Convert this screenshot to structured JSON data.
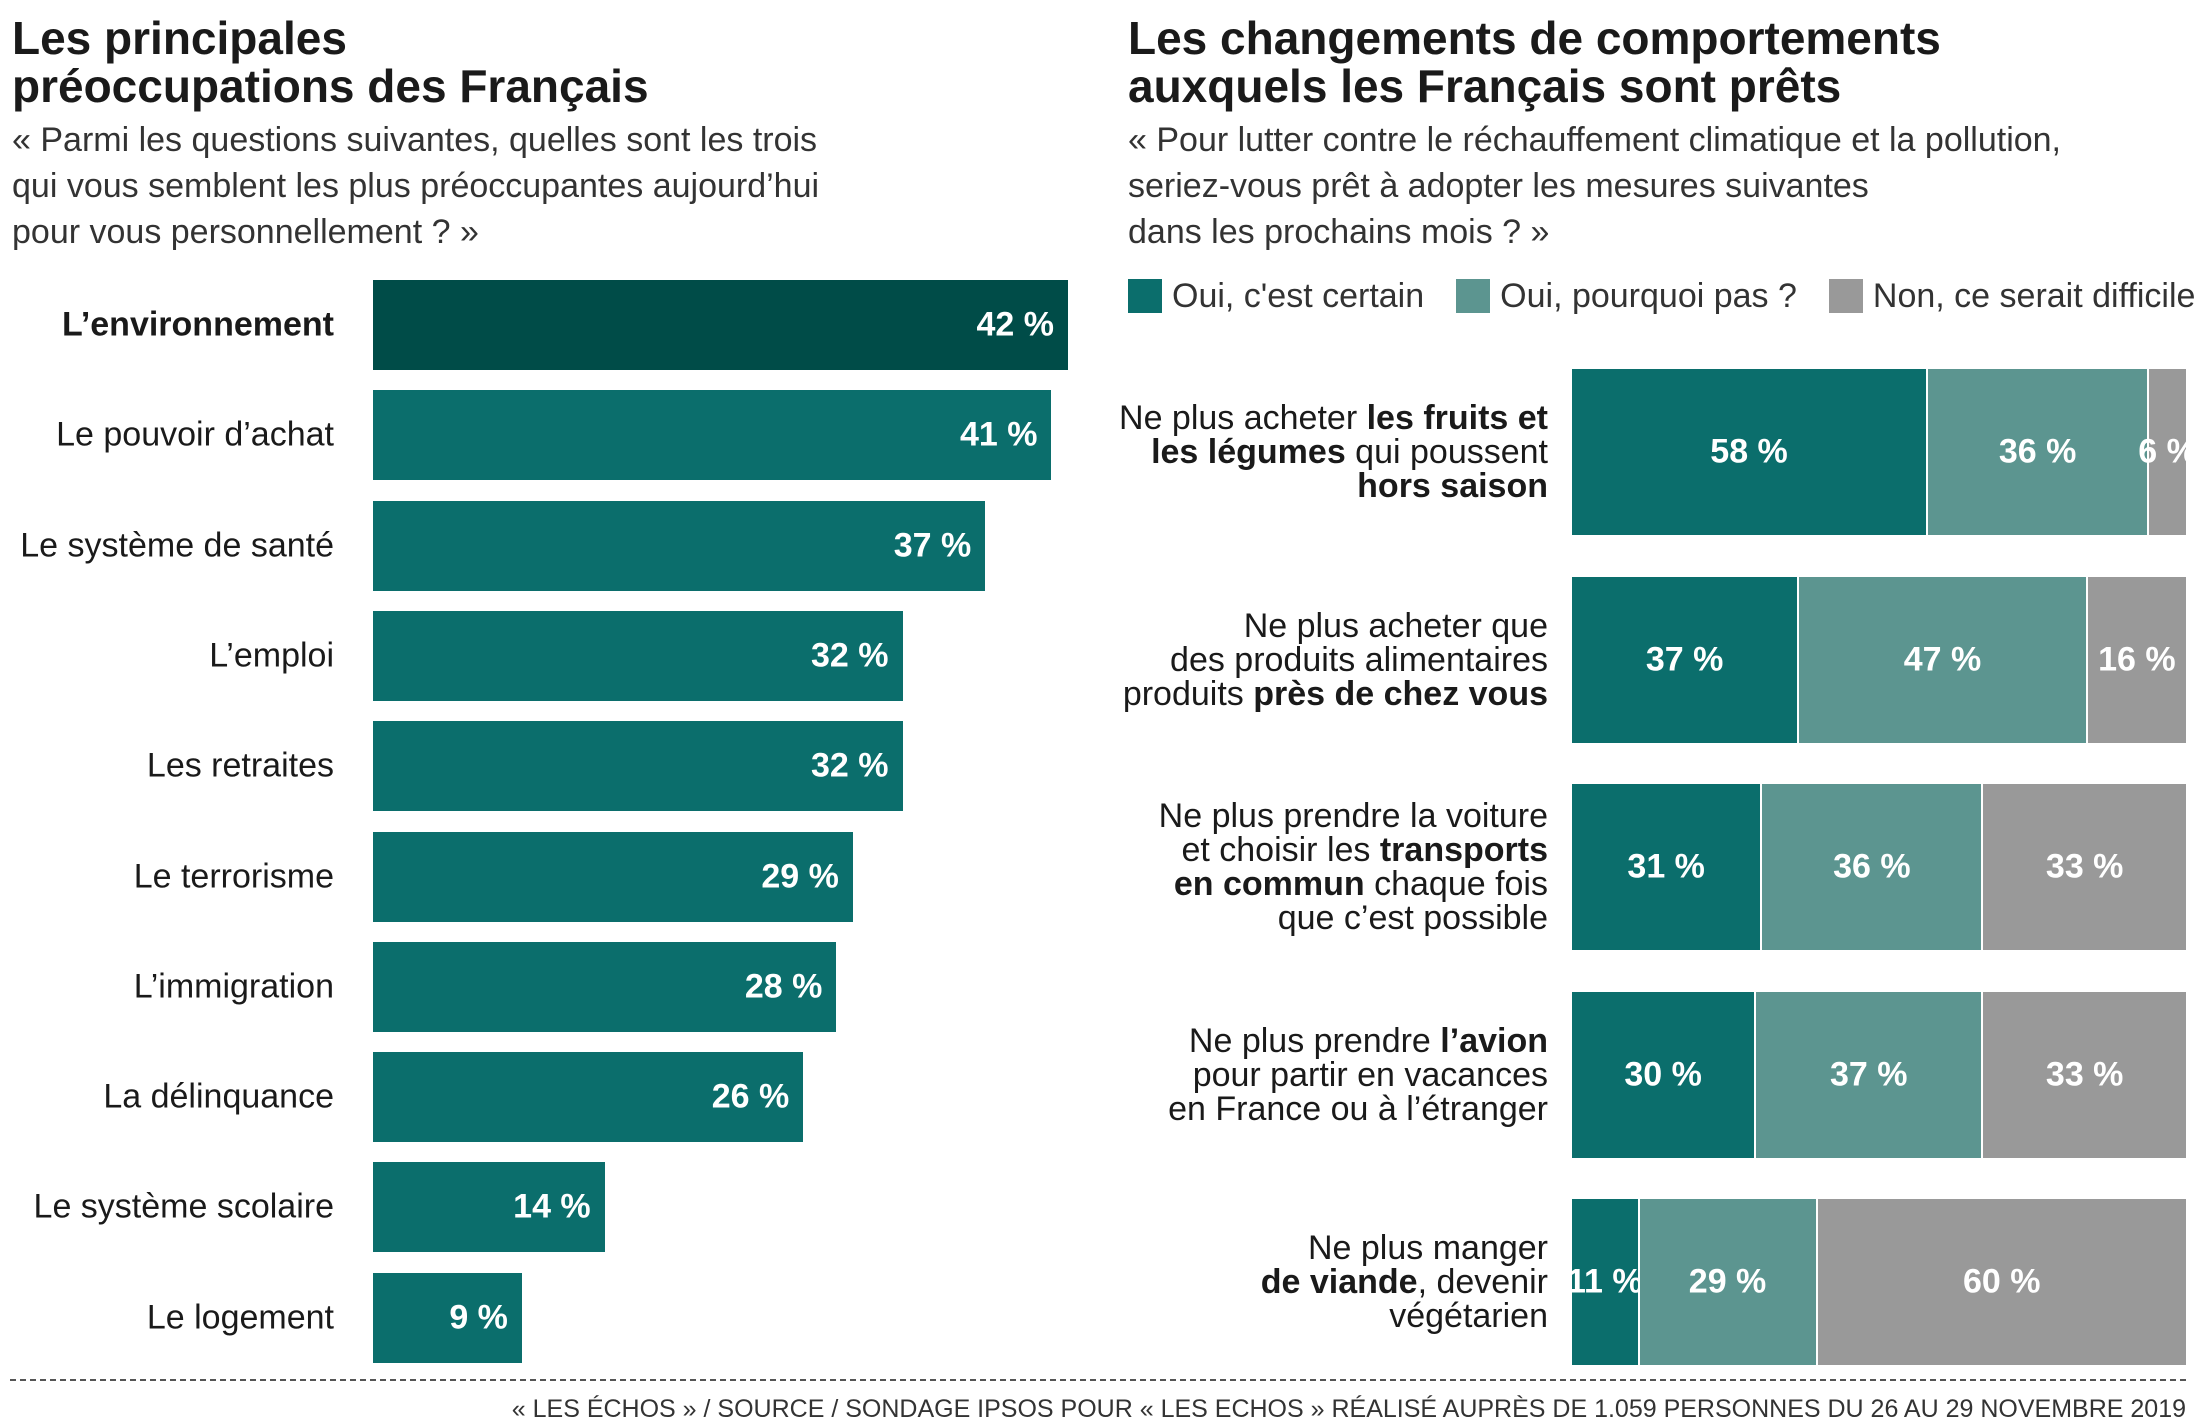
{
  "chart_data": [
    {
      "type": "bar",
      "orientation": "horizontal",
      "title": "Les principales préoccupations des Français",
      "title_lines": [
        "Les principales",
        "préoccupations des Français"
      ],
      "subtitle": "« Parmi les questions suivantes, quelles sont les trois qui vous semblent les plus préoccupantes aujourd’hui pour vous personnellement ? »",
      "subtitle_lines": [
        "« Parmi les questions suivantes, quelles sont les trois",
        "qui vous semblent les plus préoccupantes aujourd’hui",
        "pour vous personnellement ? »"
      ],
      "categories": [
        "L’environnement",
        "Le pouvoir d’achat",
        "Le système de santé",
        "L’emploi",
        "Les retraites",
        "Le terrorisme",
        "L’immigration",
        "La délinquance",
        "Le système scolaire",
        "Le logement"
      ],
      "values": [
        42,
        41,
        37,
        32,
        32,
        29,
        28,
        26,
        14,
        9
      ],
      "value_labels": [
        "42 %",
        "41 %",
        "37 %",
        "32 %",
        "32 %",
        "29 %",
        "28 %",
        "26 %",
        "14 %",
        "9 %"
      ],
      "unit": "%",
      "xlim": [
        0,
        42
      ],
      "colors": {
        "highlight": "#004c48",
        "bar": "#0b6e6c"
      }
    },
    {
      "type": "bar",
      "orientation": "horizontal",
      "stacked": true,
      "title": "Les changements de comportements auxquels les Français sont prêts",
      "title_lines": [
        "Les changements de comportements",
        "auxquels les Français sont prêts"
      ],
      "subtitle": "« Pour lutter contre le réchauffement climatique et la pollution, seriez-vous prêt à adopter les mesures suivantes dans les prochains mois ? »",
      "subtitle_lines": [
        "« Pour lutter contre le réchauffement climatique et la pollution,",
        "seriez-vous prêt à adopter les mesures suivantes",
        "dans les prochains mois ? »"
      ],
      "legend_placement": "top",
      "series": [
        {
          "name": "Oui, c'est certain",
          "color": "#0b6e6c",
          "values": [
            58,
            37,
            31,
            30,
            11
          ],
          "value_labels": [
            "58 %",
            "37 %",
            "31 %",
            "30 %",
            "11 %"
          ]
        },
        {
          "name": "Oui, pourquoi pas ?",
          "color": "#5c9590",
          "values": [
            36,
            47,
            36,
            37,
            29
          ],
          "value_labels": [
            "36 %",
            "47 %",
            "36 %",
            "37 %",
            "29 %"
          ]
        },
        {
          "name": "Non, ce serait difficile",
          "color": "#999999",
          "values": [
            6,
            16,
            33,
            33,
            60
          ],
          "value_labels": [
            "6 %",
            "16 %",
            "33 %",
            "33 %",
            "60 %"
          ]
        }
      ],
      "categories": [
        {
          "lines": [
            [
              {
                "t": "Ne plus acheter "
              },
              {
                "t": "les fruits et",
                "b": true
              }
            ],
            [
              {
                "t": "les légumes",
                "b": true
              },
              {
                "t": " qui poussent"
              }
            ],
            [
              {
                "t": "hors saison",
                "b": true
              }
            ]
          ]
        },
        {
          "lines": [
            [
              {
                "t": "Ne plus acheter que"
              }
            ],
            [
              {
                "t": "des produits alimentaires"
              }
            ],
            [
              {
                "t": "produits "
              },
              {
                "t": "près de chez vous",
                "b": true
              }
            ]
          ]
        },
        {
          "lines": [
            [
              {
                "t": "Ne plus prendre la voiture"
              }
            ],
            [
              {
                "t": "et choisir les "
              },
              {
                "t": "transports",
                "b": true
              }
            ],
            [
              {
                "t": "en commun",
                "b": true
              },
              {
                "t": " chaque fois"
              }
            ],
            [
              {
                "t": "que c’est possible"
              }
            ]
          ]
        },
        {
          "lines": [
            [
              {
                "t": "Ne plus prendre "
              },
              {
                "t": "l’avion",
                "b": true
              }
            ],
            [
              {
                "t": "pour partir en vacances"
              }
            ],
            [
              {
                "t": "en France ou à l’étranger"
              }
            ]
          ]
        },
        {
          "lines": [
            [
              {
                "t": "Ne plus manger"
              }
            ],
            [
              {
                "t": "de viande",
                "b": true
              },
              {
                "t": ", devenir"
              }
            ],
            [
              {
                "t": "végétarien"
              }
            ]
          ]
        }
      ],
      "xlim": [
        0,
        100
      ],
      "unit": "%"
    }
  ],
  "footer": "« LES ÉCHOS » / SOURCE / SONDAGE IPSOS POUR « LES ECHOS » RÉALISÉ AUPRÈS DE 1.059 PERSONNES DU 26 AU 29 NOVEMBRE 2019"
}
